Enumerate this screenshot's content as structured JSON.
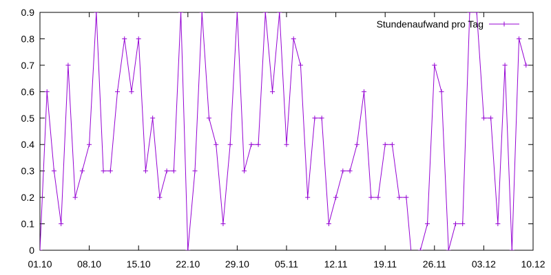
{
  "chart_data": {
    "type": "line",
    "title": "",
    "xlabel": "",
    "ylabel": "",
    "grid": false,
    "legend_position": "top-right",
    "x_start": "01.10",
    "x_end": "10.12",
    "xlim": [
      "01.10",
      "10.12"
    ],
    "ylim": [
      0,
      0.9
    ],
    "x_ticks": [
      "01.10",
      "08.10",
      "15.10",
      "22.10",
      "29.10",
      "05.11",
      "12.11",
      "19.11",
      "26.11",
      "03.12",
      "10.12"
    ],
    "y_ticks": [
      "0",
      "0.1",
      "0.2",
      "0.3",
      "0.4",
      "0.5",
      "0.6",
      "0.7",
      "0.8",
      "0.9"
    ],
    "series": [
      {
        "name": "Stundenaufwand pro Tag",
        "color": "#9400d3",
        "values": [
          0,
          0.6,
          0.3,
          0.1,
          0.7,
          0.2,
          0.3,
          0.4,
          0.9,
          0.3,
          0.3,
          0.6,
          0.8,
          0.6,
          0.8,
          0.3,
          0.5,
          0.2,
          0.3,
          0.3,
          0.9,
          0,
          0.3,
          0.9,
          0.5,
          0.4,
          0.1,
          0.4,
          0.9,
          0.3,
          0.4,
          0.4,
          0.9,
          0.6,
          0.9,
          0.4,
          0.8,
          0.7,
          0.2,
          0.5,
          0.5,
          0.1,
          0.2,
          0.3,
          0.3,
          0.4,
          0.6,
          0.2,
          0.2,
          0.4,
          0.4,
          0.2,
          0.2,
          -0.1,
          0,
          0.1,
          0.7,
          0.6,
          0,
          0.1,
          0.1,
          0.9,
          0.9,
          0.5,
          0.5,
          0.1,
          0.7,
          0,
          0.8,
          0.7
        ]
      }
    ]
  }
}
